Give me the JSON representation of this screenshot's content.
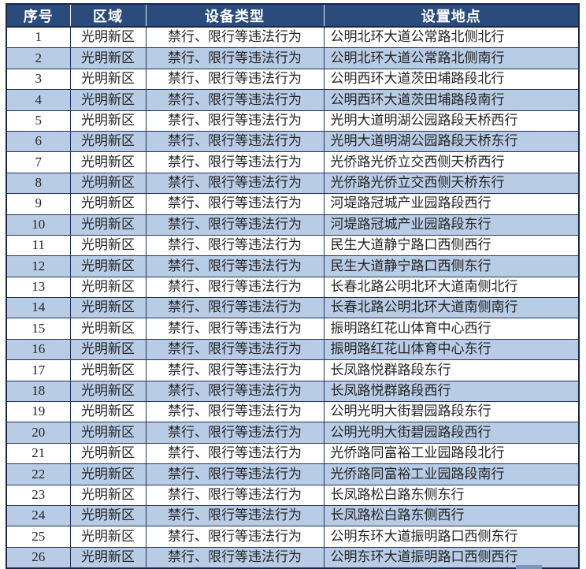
{
  "table": {
    "columns": [
      "序号",
      "区域",
      "设备类型",
      "设置地点"
    ],
    "rows": [
      {
        "no": "1",
        "region": "光明新区",
        "device_type": "禁行、限行等违法行为",
        "location": "公明北环大道公常路北侧北行"
      },
      {
        "no": "2",
        "region": "光明新区",
        "device_type": "禁行、限行等违法行为",
        "location": "公明北环大道公常路北侧南行"
      },
      {
        "no": "3",
        "region": "光明新区",
        "device_type": "禁行、限行等违法行为",
        "location": "公明西环大道茨田埔路段北行"
      },
      {
        "no": "4",
        "region": "光明新区",
        "device_type": "禁行、限行等违法行为",
        "location": "公明西环大道茨田埔路段南行"
      },
      {
        "no": "5",
        "region": "光明新区",
        "device_type": "禁行、限行等违法行为",
        "location": "光明大道明湖公园路段天桥西行"
      },
      {
        "no": "6",
        "region": "光明新区",
        "device_type": "禁行、限行等违法行为",
        "location": "光明大道明湖公园路段天桥东行"
      },
      {
        "no": "7",
        "region": "光明新区",
        "device_type": "禁行、限行等违法行为",
        "location": "光侨路光侨立交西侧天桥西行"
      },
      {
        "no": "8",
        "region": "光明新区",
        "device_type": "禁行、限行等违法行为",
        "location": "光侨路光侨立交西侧天桥东行"
      },
      {
        "no": "9",
        "region": "光明新区",
        "device_type": "禁行、限行等违法行为",
        "location": "河堤路冠城产业园路段西行"
      },
      {
        "no": "10",
        "region": "光明新区",
        "device_type": "禁行、限行等违法行为",
        "location": "河堤路冠城产业园路段东行"
      },
      {
        "no": "11",
        "region": "光明新区",
        "device_type": "禁行、限行等违法行为",
        "location": "民生大道静宁路口西侧西行"
      },
      {
        "no": "12",
        "region": "光明新区",
        "device_type": "禁行、限行等违法行为",
        "location": "民生大道静宁路口西侧东行"
      },
      {
        "no": "13",
        "region": "光明新区",
        "device_type": "禁行、限行等违法行为",
        "location": "长春北路公明北环大道南侧北行"
      },
      {
        "no": "14",
        "region": "光明新区",
        "device_type": "禁行、限行等违法行为",
        "location": "长春北路公明北环大道南侧南行"
      },
      {
        "no": "15",
        "region": "光明新区",
        "device_type": "禁行、限行等违法行为",
        "location": "振明路红花山体育中心西行"
      },
      {
        "no": "16",
        "region": "光明新区",
        "device_type": "禁行、限行等违法行为",
        "location": "振明路红花山体育中心东行"
      },
      {
        "no": "17",
        "region": "光明新区",
        "device_type": "禁行、限行等违法行为",
        "location": "长凤路悦群路段东行"
      },
      {
        "no": "18",
        "region": "光明新区",
        "device_type": "禁行、限行等违法行为",
        "location": "长凤路悦群路段西行"
      },
      {
        "no": "19",
        "region": "光明新区",
        "device_type": "禁行、限行等违法行为",
        "location": "公明光明大街碧园路段东行"
      },
      {
        "no": "20",
        "region": "光明新区",
        "device_type": "禁行、限行等违法行为",
        "location": "公明光明大街碧园路段西行"
      },
      {
        "no": "21",
        "region": "光明新区",
        "device_type": "禁行、限行等违法行为",
        "location": "光侨路同富裕工业园路段北行"
      },
      {
        "no": "22",
        "region": "光明新区",
        "device_type": "禁行、限行等违法行为",
        "location": "光侨路同富裕工业园路段南行"
      },
      {
        "no": "23",
        "region": "光明新区",
        "device_type": "禁行、限行等违法行为",
        "location": "长凤路松白路东侧东行"
      },
      {
        "no": "24",
        "region": "光明新区",
        "device_type": "禁行、限行等违法行为",
        "location": "长凤路松白路东侧西行"
      },
      {
        "no": "25",
        "region": "光明新区",
        "device_type": "禁行、限行等违法行为",
        "location": "公明东环大道振明路口西侧东行"
      },
      {
        "no": "26",
        "region": "光明新区",
        "device_type": "禁行、限行等违法行为",
        "location": "公明东环大道振明路口西侧西行"
      }
    ]
  },
  "colors": {
    "header_bg": "#2a4b7c",
    "header_text": "#ffffff",
    "row_alt_bg": "#b9cce6",
    "border": "#22335a",
    "outer_border": "#1a2947",
    "body_text": "#242424",
    "bottom_artifact": "#7d95b8"
  }
}
